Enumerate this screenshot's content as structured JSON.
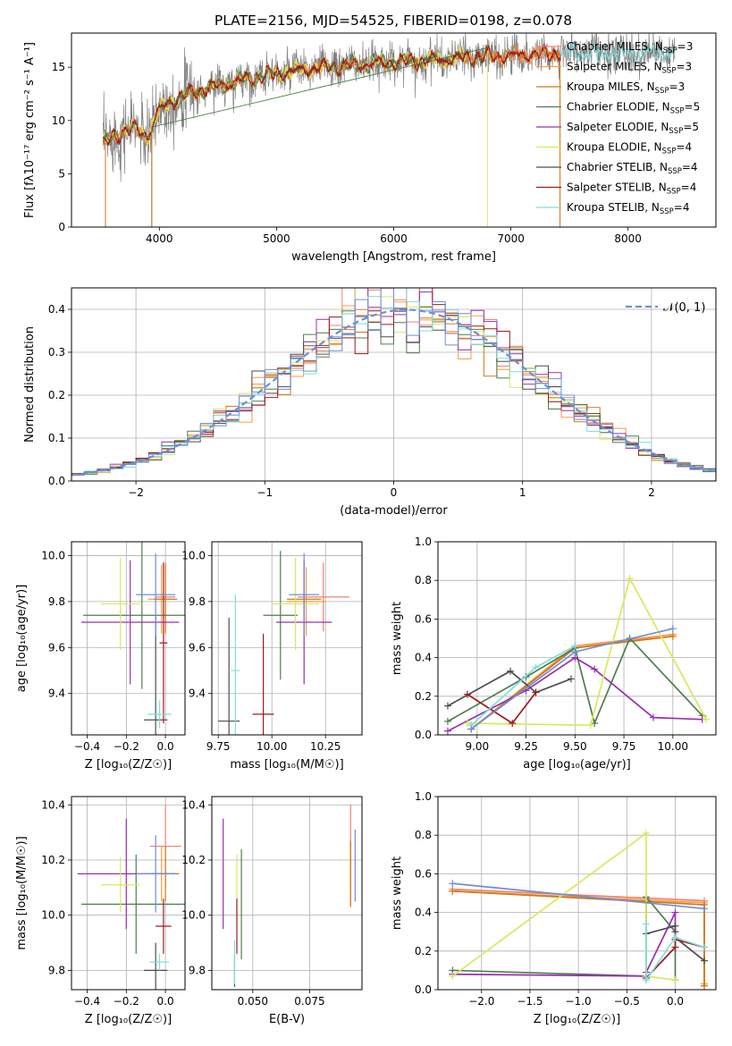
{
  "title": "PLATE=2156, MJD=54525, FIBERID=0198, z=0.078",
  "colors": {
    "Chabrier MILES": "#f08070",
    "Salpeter MILES": "#ff9a3c",
    "Kroupa MILES": "#cc7a1a",
    "Chabrier ELODIE": "#4f7d4f",
    "Salpeter ELODIE": "#9a2db3",
    "Kroupa ELODIE": "#d9e85a",
    "Chabrier STELIB": "#4d4d4d",
    "Salpeter STELIB": "#a11a1a",
    "Kroupa STELIB": "#7fdede",
    "Normal": "#6a8fd9"
  },
  "chart_data": [
    {
      "id": "spectrum",
      "type": "line",
      "title": "PLATE=2156, MJD=54525, FIBERID=0198, z=0.078",
      "xlabel": "wavelength [Angstrom, rest frame]",
      "ylabel": "Flux [fλ10⁻¹⁷ erg cm⁻² s⁻¹ A⁻¹]",
      "xlim": [
        3250,
        8750
      ],
      "ylim": [
        0,
        18.2
      ],
      "xticks": [
        4000,
        5000,
        6000,
        7000,
        8000
      ],
      "yticks": [
        0,
        5,
        10,
        15
      ],
      "grid": false,
      "legend_position": "right",
      "legend": [
        "Chabrier MILES, N_SSP=3",
        "Salpeter MILES, N_SSP=3",
        "Kroupa MILES, N_SSP=3",
        "Chabrier ELODIE, N_SSP=5",
        "Salpeter ELODIE, N_SSP=5",
        "Kroupa ELODIE, N_SSP=4",
        "Chabrier STELIB, N_SSP=4",
        "Salpeter STELIB, N_SSP=4",
        "Kroupa STELIB, N_SSP=4"
      ],
      "legend_main": [
        "Chabrier MILES, N",
        "Salpeter MILES, N",
        "Kroupa MILES, N",
        "Chabrier ELODIE, N",
        "Salpeter ELODIE, N",
        "Kroupa ELODIE, N",
        "Chabrier STELIB, N",
        "Salpeter STELIB, N",
        "Kroupa STELIB, N"
      ],
      "legend_sub": "SSP",
      "legend_n": [
        "=3",
        "=3",
        "=3",
        "=5",
        "=5",
        "=4",
        "=4",
        "=4",
        "=4"
      ],
      "continuum": {
        "x": [
          3500,
          3600,
          3700,
          3800,
          3900,
          4000,
          4100,
          4200,
          4400,
          4600,
          4800,
          5000,
          5200,
          5400,
          5600,
          5800,
          6000,
          6200,
          6400,
          6600,
          6800,
          7000,
          7200,
          7400
        ],
        "y": [
          7.5,
          8.5,
          9.0,
          9.2,
          8.5,
          11.0,
          11.8,
          12.3,
          13.0,
          13.5,
          14.0,
          14.4,
          14.7,
          15.0,
          15.1,
          15.3,
          15.5,
          15.6,
          15.7,
          15.9,
          16.0,
          16.1,
          16.2,
          16.3
        ]
      },
      "data_range": [
        3520,
        8400
      ],
      "drops": [
        3540,
        3935,
        6800,
        7420
      ]
    },
    {
      "id": "residuals",
      "type": "line",
      "xlabel": "(data-model)/error",
      "ylabel": "Normed distribution",
      "xlim": [
        -2.5,
        2.5
      ],
      "ylim": [
        0,
        0.45
      ],
      "xticks": [
        -2,
        -1,
        0,
        1,
        2
      ],
      "yticks": [
        0.0,
        0.1,
        0.2,
        0.3,
        0.4
      ],
      "grid": true,
      "legend": [
        "𝒩(0, 1)"
      ],
      "legend_position": "top-right",
      "bin_width": 0.1,
      "normal": {
        "mean": 0.1,
        "sigma": 1.0
      }
    },
    {
      "id": "age-vs-Z",
      "type": "scatter",
      "xlabel": "Z [log₁₀(Z/Z☉)]",
      "ylabel": "age  [log₁₀(age/yr)]",
      "xlim": [
        -0.48,
        0.1
      ],
      "ylim": [
        9.22,
        10.06
      ],
      "xticks": [
        -0.4,
        -0.2,
        0.0
      ],
      "yticks": [
        9.4,
        9.6,
        9.8,
        10.0
      ],
      "grid": true,
      "points": [
        {
          "series": "Chabrier MILES",
          "x": 0.0,
          "y": 9.82,
          "xerr": 0.05,
          "yerr": 0.15
        },
        {
          "series": "Salpeter MILES",
          "x": -0.02,
          "y": 9.81,
          "xerr": 0.07,
          "yerr": 0.15
        },
        {
          "series": "Kroupa MILES",
          "x": 0.0,
          "y": 9.81,
          "xerr": 0.06,
          "yerr": 0.15
        },
        {
          "series": "Chabrier ELODIE",
          "x": -0.12,
          "y": 9.74,
          "xerr": 0.3,
          "yerr": 0.32
        },
        {
          "series": "Salpeter ELODIE",
          "x": -0.18,
          "y": 9.71,
          "xerr": 0.25,
          "yerr": 0.27
        },
        {
          "series": "Kroupa ELODIE",
          "x": -0.23,
          "y": 9.79,
          "xerr": 0.1,
          "yerr": 0.2
        },
        {
          "series": "Chabrier STELIB",
          "x": -0.05,
          "y": 9.285,
          "xerr": 0.06,
          "yerr": 0.45
        },
        {
          "series": "Salpeter STELIB",
          "x": -0.01,
          "y": 9.62,
          "xerr": 0.02,
          "yerr": 0.35
        },
        {
          "series": "Kroupa STELIB",
          "x": -0.03,
          "y": 9.31,
          "xerr": 0.06,
          "yerr": 0.06
        },
        {
          "series": "Normal",
          "x": -0.05,
          "y": 9.83,
          "xerr": 0.1,
          "yerr": 0.18
        }
      ]
    },
    {
      "id": "age-vs-mass",
      "type": "scatter",
      "xlabel": "mass [log₁₀(M/M☉)]",
      "ylabel": "",
      "xlim": [
        9.72,
        10.42
      ],
      "ylim": [
        9.22,
        10.06
      ],
      "xticks": [
        9.75,
        10.0,
        10.25
      ],
      "yticks": [
        9.4,
        9.6,
        9.8,
        10.0
      ],
      "grid": true,
      "points": [
        {
          "series": "Chabrier MILES",
          "x": 10.24,
          "y": 9.82,
          "xerr": 0.12,
          "yerr": 0.15
        },
        {
          "series": "Salpeter MILES",
          "x": 10.16,
          "y": 9.8,
          "xerr": 0.09,
          "yerr": 0.15
        },
        {
          "series": "Kroupa MILES",
          "x": 10.15,
          "y": 9.81,
          "xerr": 0.08,
          "yerr": 0.15
        },
        {
          "series": "Chabrier ELODIE",
          "x": 10.04,
          "y": 9.74,
          "xerr": 0.08,
          "yerr": 0.28
        },
        {
          "series": "Salpeter ELODIE",
          "x": 10.15,
          "y": 9.71,
          "xerr": 0.13,
          "yerr": 0.27
        },
        {
          "series": "Kroupa ELODIE",
          "x": 10.11,
          "y": 9.79,
          "xerr": 0.11,
          "yerr": 0.2
        },
        {
          "series": "Chabrier STELIB",
          "x": 9.8,
          "y": 9.28,
          "xerr": 0.05,
          "yerr": 0.45
        },
        {
          "series": "Salpeter STELIB",
          "x": 9.96,
          "y": 9.31,
          "xerr": 0.05,
          "yerr": 0.35
        },
        {
          "series": "Kroupa STELIB",
          "x": 9.83,
          "y": 9.5,
          "xerr": 0.02,
          "yerr": 0.33
        },
        {
          "series": "Normal",
          "x": 10.15,
          "y": 9.83,
          "xerr": 0.07,
          "yerr": 0.18
        }
      ]
    },
    {
      "id": "weight-vs-age",
      "type": "line",
      "xlabel": "age  [log₁₀(age/yr)]",
      "ylabel": "mass weight",
      "xlim": [
        8.8,
        10.22
      ],
      "ylim": [
        0,
        1.0
      ],
      "xticks": [
        9.0,
        9.25,
        9.5,
        9.75,
        10.0
      ],
      "yticks": [
        0.0,
        0.2,
        0.4,
        0.6,
        0.8,
        1.0
      ],
      "grid": true,
      "series": [
        {
          "name": "Chabrier MILES",
          "x": [
            8.97,
            9.5,
            10.0
          ],
          "y": [
            0.03,
            0.45,
            0.52
          ]
        },
        {
          "name": "Salpeter MILES",
          "x": [
            8.97,
            9.5,
            10.0
          ],
          "y": [
            0.03,
            0.46,
            0.52
          ]
        },
        {
          "name": "Kroupa MILES",
          "x": [
            8.97,
            9.5,
            10.0
          ],
          "y": [
            0.03,
            0.45,
            0.51
          ]
        },
        {
          "name": "Chabrier ELODIE",
          "x": [
            8.85,
            9.25,
            9.5,
            9.6,
            9.78,
            10.15
          ],
          "y": [
            0.07,
            0.3,
            0.45,
            0.06,
            0.5,
            0.1
          ]
        },
        {
          "name": "Salpeter ELODIE",
          "x": [
            8.85,
            9.25,
            9.5,
            9.6,
            9.9,
            10.15
          ],
          "y": [
            0.02,
            0.23,
            0.4,
            0.34,
            0.09,
            0.08
          ]
        },
        {
          "name": "Kroupa ELODIE",
          "x": [
            8.95,
            9.58,
            9.78,
            10.17
          ],
          "y": [
            0.06,
            0.05,
            0.81,
            0.08
          ]
        },
        {
          "name": "Chabrier STELIB",
          "x": [
            8.85,
            9.17,
            9.3,
            9.48
          ],
          "y": [
            0.15,
            0.33,
            0.22,
            0.29
          ]
        },
        {
          "name": "Salpeter STELIB",
          "x": [
            8.95,
            9.18,
            9.3
          ],
          "y": [
            0.21,
            0.06,
            0.22
          ]
        },
        {
          "name": "Kroupa STELIB",
          "x": [
            8.97,
            9.3,
            9.5
          ],
          "y": [
            0.05,
            0.35,
            0.46
          ]
        },
        {
          "name": "Normal",
          "x": [
            8.97,
            9.5,
            10.0
          ],
          "y": [
            0.03,
            0.43,
            0.55
          ]
        }
      ]
    },
    {
      "id": "mass-vs-Z",
      "type": "scatter",
      "xlabel": "Z [log₁₀(Z/Z☉)]",
      "ylabel": "mass [log₁₀(M/M☉)]",
      "xlim": [
        -0.48,
        0.1
      ],
      "ylim": [
        9.73,
        10.43
      ],
      "xticks": [
        -0.4,
        -0.2,
        0.0
      ],
      "yticks": [
        9.8,
        10.0,
        10.2,
        10.4
      ],
      "grid": true,
      "points": [
        {
          "series": "Chabrier MILES",
          "x": 0.0,
          "y": 10.25,
          "xerr": 0.08,
          "yerr": 0.15
        },
        {
          "series": "Salpeter MILES",
          "x": -0.02,
          "y": 10.15,
          "xerr": 0.09,
          "yerr": 0.1
        },
        {
          "series": "Kroupa MILES",
          "x": 0.0,
          "y": 10.15,
          "xerr": 0.07,
          "yerr": 0.1
        },
        {
          "series": "Chabrier ELODIE",
          "x": -0.15,
          "y": 10.04,
          "xerr": 0.28,
          "yerr": 0.18
        },
        {
          "series": "Salpeter ELODIE",
          "x": -0.2,
          "y": 10.15,
          "xerr": 0.25,
          "yerr": 0.2
        },
        {
          "series": "Kroupa ELODIE",
          "x": -0.23,
          "y": 10.11,
          "xerr": 0.1,
          "yerr": 0.1
        },
        {
          "series": "Chabrier STELIB",
          "x": -0.05,
          "y": 9.8,
          "xerr": 0.06,
          "yerr": 0.1
        },
        {
          "series": "Salpeter STELIB",
          "x": -0.01,
          "y": 9.96,
          "xerr": 0.04,
          "yerr": 0.1
        },
        {
          "series": "Kroupa STELIB",
          "x": -0.03,
          "y": 9.83,
          "xerr": 0.05,
          "yerr": 0.03
        },
        {
          "series": "Normal",
          "x": -0.05,
          "y": 10.15,
          "xerr": 0.1,
          "yerr": 0.14
        }
      ]
    },
    {
      "id": "mass-vs-ebv",
      "type": "scatter",
      "xlabel": "E(B-V)",
      "ylabel": "",
      "xlim": [
        0.032,
        0.098
      ],
      "ylim": [
        9.73,
        10.43
      ],
      "xticks": [
        0.05,
        0.075
      ],
      "yticks": [
        9.8,
        10.0,
        10.2,
        10.4
      ],
      "grid": true,
      "points": [
        {
          "series": "Chabrier MILES",
          "x": 0.093,
          "y": 10.25,
          "yerr": 0.15
        },
        {
          "series": "Salpeter MILES",
          "x": 0.093,
          "y": 10.15,
          "yerr": 0.12
        },
        {
          "series": "Kroupa MILES",
          "x": 0.093,
          "y": 10.15,
          "yerr": 0.12
        },
        {
          "series": "Chabrier ELODIE",
          "x": 0.045,
          "y": 10.04,
          "yerr": 0.2
        },
        {
          "series": "Salpeter ELODIE",
          "x": 0.037,
          "y": 10.15,
          "yerr": 0.2
        },
        {
          "series": "Kroupa ELODIE",
          "x": 0.043,
          "y": 10.1,
          "yerr": 0.12
        },
        {
          "series": "Chabrier STELIB",
          "x": 0.042,
          "y": 9.8,
          "yerr": 0.06
        },
        {
          "series": "Salpeter STELIB",
          "x": 0.043,
          "y": 9.96,
          "yerr": 0.1
        },
        {
          "series": "Kroupa STELIB",
          "x": 0.042,
          "y": 9.83,
          "yerr": 0.08
        },
        {
          "series": "Normal",
          "x": 0.095,
          "y": 10.18,
          "yerr": 0.13
        }
      ]
    },
    {
      "id": "weight-vs-Z",
      "type": "line",
      "xlabel": "Z [log₁₀(Z/Z☉)]",
      "ylabel": "mass weight",
      "xlim": [
        -2.45,
        0.42
      ],
      "ylim": [
        0,
        1.0
      ],
      "xticks": [
        -2.0,
        -1.5,
        -1.0,
        -0.5,
        0.0
      ],
      "yticks": [
        0.0,
        0.2,
        0.4,
        0.6,
        0.8,
        1.0
      ],
      "grid": true,
      "series": [
        {
          "name": "Chabrier MILES",
          "x": [
            -2.3,
            0.3,
            0.3
          ],
          "y": [
            0.52,
            0.46,
            0.02
          ]
        },
        {
          "name": "Salpeter MILES",
          "x": [
            -2.3,
            0.3,
            0.3
          ],
          "y": [
            0.51,
            0.45,
            0.03
          ]
        },
        {
          "name": "Kroupa MILES",
          "x": [
            -2.3,
            0.3,
            0.3
          ],
          "y": [
            0.51,
            0.44,
            0.02
          ]
        },
        {
          "name": "Chabrier ELODIE",
          "x": [
            -2.3,
            -0.3,
            -0.3,
            0.0,
            0.0
          ],
          "y": [
            0.1,
            0.07,
            0.48,
            0.3,
            0.05
          ]
        },
        {
          "name": "Salpeter ELODIE",
          "x": [
            -2.3,
            -0.3,
            -0.3,
            0.0,
            0.0
          ],
          "y": [
            0.08,
            0.07,
            0.09,
            0.4,
            0.3
          ]
        },
        {
          "name": "Kroupa ELODIE",
          "x": [
            -2.3,
            -0.3,
            -0.3,
            0.0
          ],
          "y": [
            0.07,
            0.81,
            0.07,
            0.05
          ]
        },
        {
          "name": "Chabrier STELIB",
          "x": [
            -0.3,
            0.0,
            0.0,
            0.3
          ],
          "y": [
            0.29,
            0.33,
            0.27,
            0.15
          ]
        },
        {
          "name": "Salpeter STELIB",
          "x": [
            -0.3,
            0.0,
            0.0,
            0.3
          ],
          "y": [
            0.06,
            0.22,
            0.26,
            0.22
          ]
        },
        {
          "name": "Kroupa STELIB",
          "x": [
            -0.3,
            -0.3,
            0.0,
            0.3
          ],
          "y": [
            0.34,
            0.05,
            0.27,
            0.22
          ]
        },
        {
          "name": "Normal",
          "x": [
            -2.3,
            0.3
          ],
          "y": [
            0.55,
            0.42
          ]
        }
      ]
    }
  ]
}
